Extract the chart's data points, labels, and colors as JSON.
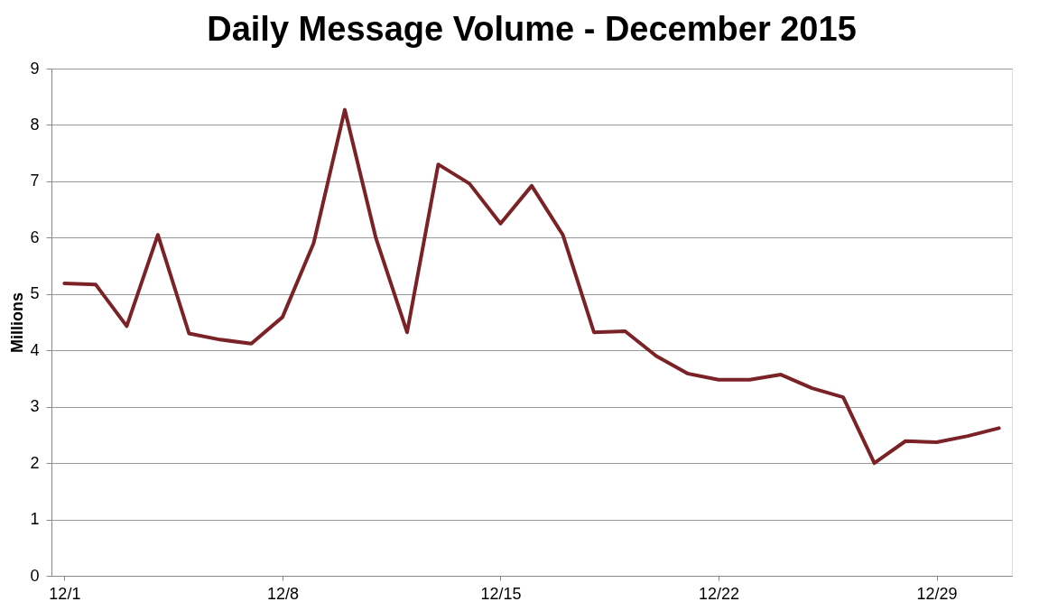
{
  "chart_data": {
    "type": "line",
    "title": "Daily Message Volume - December 2015",
    "ylabel": "Millions",
    "x": [
      "2015-12-01",
      "2015-12-02",
      "2015-12-03",
      "2015-12-04",
      "2015-12-05",
      "2015-12-06",
      "2015-12-07",
      "2015-12-08",
      "2015-12-09",
      "2015-12-10",
      "2015-12-11",
      "2015-12-12",
      "2015-12-13",
      "2015-12-14",
      "2015-12-15",
      "2015-12-16",
      "2015-12-17",
      "2015-12-18",
      "2015-12-19",
      "2015-12-20",
      "2015-12-21",
      "2015-12-22",
      "2015-12-23",
      "2015-12-24",
      "2015-12-25",
      "2015-12-26",
      "2015-12-27",
      "2015-12-28",
      "2015-12-29",
      "2015-12-30",
      "2015-12-31"
    ],
    "series": [
      {
        "color": "#7b2226",
        "values": [
          5.19,
          5.17,
          4.43,
          6.05,
          4.3,
          4.19,
          4.12,
          4.59,
          5.9,
          8.27,
          5.99,
          4.32,
          7.3,
          6.96,
          6.25,
          6.92,
          6.05,
          4.32,
          4.34,
          3.9,
          3.59,
          3.48,
          3.48,
          3.57,
          3.33,
          3.17,
          2.0,
          2.39,
          2.37,
          2.48,
          2.62
        ]
      }
    ],
    "xlim": [
      "2015-11-30T14:00",
      "2015-12-31T10:00"
    ],
    "xticks": [
      {
        "value": "2015-12-01",
        "label": "12/1"
      },
      {
        "value": "2015-12-08",
        "label": "12/8"
      },
      {
        "value": "2015-12-15",
        "label": "12/15"
      },
      {
        "value": "2015-12-22",
        "label": "12/22"
      },
      {
        "value": "2015-12-29",
        "label": "12/29"
      }
    ],
    "ylim": [
      0,
      9
    ],
    "yticks": [
      0,
      1,
      2,
      3,
      4,
      5,
      6,
      7,
      8,
      9
    ],
    "grid": "y",
    "legend": false,
    "marker": "none",
    "line_style": "solid"
  }
}
